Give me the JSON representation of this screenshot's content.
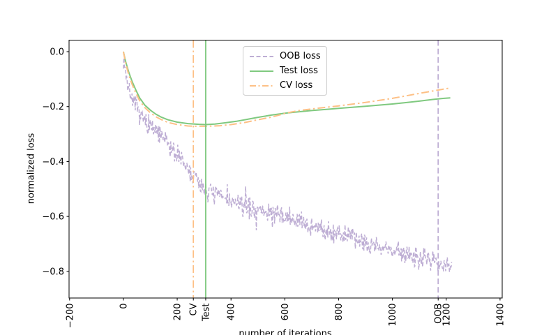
{
  "chart_data": {
    "type": "line",
    "title": "",
    "xlabel": "number of iterations",
    "ylabel": "normalized loss",
    "xlim": [
      -202,
      1408
    ],
    "ylim": [
      -0.897,
      0.042
    ],
    "grid": false,
    "legend_position": "upper center",
    "xticks": [
      {
        "value": -200,
        "label": "−200"
      },
      {
        "value": 0,
        "label": "0"
      },
      {
        "value": 200,
        "label": "200"
      },
      {
        "value": 260,
        "label": "CV"
      },
      {
        "value": 306,
        "label": "Test"
      },
      {
        "value": 400,
        "label": "400"
      },
      {
        "value": 600,
        "label": "600"
      },
      {
        "value": 800,
        "label": "800"
      },
      {
        "value": 1000,
        "label": "1000"
      },
      {
        "value": 1170,
        "label": "OOB"
      },
      {
        "value": 1200,
        "label": "1200"
      },
      {
        "value": 1400,
        "label": "1400"
      }
    ],
    "yticks": [
      {
        "value": 0.0,
        "label": "0.0"
      },
      {
        "value": -0.2,
        "label": "−0.2"
      },
      {
        "value": -0.4,
        "label": "−0.4"
      },
      {
        "value": -0.6,
        "label": "−0.6"
      },
      {
        "value": -0.8,
        "label": "−0.8"
      }
    ],
    "series": [
      {
        "name": "OOB loss",
        "color": "#beaed4",
        "style": "dashed",
        "noisy": true,
        "noise_amp": 0.045,
        "sample_step": 2,
        "seed": 7,
        "points": [
          [
            0,
            -0.02
          ],
          [
            5,
            -0.05
          ],
          [
            12,
            -0.1
          ],
          [
            20,
            -0.135
          ],
          [
            30,
            -0.165
          ],
          [
            45,
            -0.2
          ],
          [
            60,
            -0.225
          ],
          [
            80,
            -0.253
          ],
          [
            100,
            -0.272
          ],
          [
            125,
            -0.295
          ],
          [
            150,
            -0.318
          ],
          [
            175,
            -0.347
          ],
          [
            200,
            -0.375
          ],
          [
            230,
            -0.415
          ],
          [
            260,
            -0.455
          ],
          [
            285,
            -0.48
          ],
          [
            306,
            -0.5
          ],
          [
            330,
            -0.512
          ],
          [
            360,
            -0.525
          ],
          [
            400,
            -0.547
          ],
          [
            450,
            -0.562
          ],
          [
            500,
            -0.576
          ],
          [
            550,
            -0.588
          ],
          [
            600,
            -0.6
          ],
          [
            650,
            -0.617
          ],
          [
            700,
            -0.634
          ],
          [
            750,
            -0.648
          ],
          [
            800,
            -0.662
          ],
          [
            850,
            -0.678
          ],
          [
            900,
            -0.695
          ],
          [
            950,
            -0.71
          ],
          [
            1000,
            -0.723
          ],
          [
            1050,
            -0.736
          ],
          [
            1100,
            -0.748
          ],
          [
            1140,
            -0.757
          ],
          [
            1170,
            -0.766
          ],
          [
            1200,
            -0.775
          ],
          [
            1220,
            -0.78
          ]
        ]
      },
      {
        "name": "Test loss",
        "color": "#7fc97f",
        "style": "solid",
        "noisy": false,
        "points": [
          [
            0,
            0
          ],
          [
            8,
            -0.035
          ],
          [
            20,
            -0.075
          ],
          [
            32,
            -0.108
          ],
          [
            45,
            -0.137
          ],
          [
            60,
            -0.168
          ],
          [
            80,
            -0.195
          ],
          [
            100,
            -0.213
          ],
          [
            120,
            -0.227
          ],
          [
            140,
            -0.238
          ],
          [
            165,
            -0.248
          ],
          [
            200,
            -0.2565
          ],
          [
            240,
            -0.262
          ],
          [
            280,
            -0.2645
          ],
          [
            306,
            -0.2655
          ],
          [
            340,
            -0.2635
          ],
          [
            380,
            -0.259
          ],
          [
            420,
            -0.2535
          ],
          [
            460,
            -0.2465
          ],
          [
            500,
            -0.239
          ],
          [
            550,
            -0.231
          ],
          [
            605,
            -0.2235
          ],
          [
            650,
            -0.219
          ],
          [
            700,
            -0.2145
          ],
          [
            750,
            -0.2105
          ],
          [
            800,
            -0.2065
          ],
          [
            850,
            -0.2025
          ],
          [
            900,
            -0.199
          ],
          [
            950,
            -0.1945
          ],
          [
            1000,
            -0.1905
          ],
          [
            1050,
            -0.1855
          ],
          [
            1100,
            -0.18
          ],
          [
            1150,
            -0.174
          ],
          [
            1185,
            -0.1705
          ],
          [
            1215,
            -0.1685
          ]
        ]
      },
      {
        "name": "CV loss",
        "color": "#fdc086",
        "style": "dashdot",
        "noisy": false,
        "points": [
          [
            0,
            0
          ],
          [
            8,
            -0.04
          ],
          [
            20,
            -0.085
          ],
          [
            32,
            -0.118
          ],
          [
            45,
            -0.148
          ],
          [
            60,
            -0.178
          ],
          [
            80,
            -0.204
          ],
          [
            100,
            -0.2225
          ],
          [
            120,
            -0.2365
          ],
          [
            140,
            -0.247
          ],
          [
            165,
            -0.2575
          ],
          [
            200,
            -0.2655
          ],
          [
            240,
            -0.2705
          ],
          [
            270,
            -0.2715
          ],
          [
            310,
            -0.2715
          ],
          [
            360,
            -0.2695
          ],
          [
            400,
            -0.2655
          ],
          [
            450,
            -0.258
          ],
          [
            500,
            -0.248
          ],
          [
            550,
            -0.2385
          ],
          [
            605,
            -0.2235
          ],
          [
            650,
            -0.215
          ],
          [
            700,
            -0.2085
          ],
          [
            750,
            -0.203
          ],
          [
            800,
            -0.1975
          ],
          [
            850,
            -0.191
          ],
          [
            900,
            -0.185
          ],
          [
            950,
            -0.1775
          ],
          [
            1000,
            -0.17
          ],
          [
            1050,
            -0.161
          ],
          [
            1100,
            -0.152
          ],
          [
            1160,
            -0.1415
          ],
          [
            1210,
            -0.133
          ]
        ]
      }
    ],
    "vlines": [
      {
        "x": 260,
        "label": "CV",
        "color": "#fdc086",
        "style": "dashdot"
      },
      {
        "x": 306,
        "label": "Test",
        "color": "#7fc97f",
        "style": "solid"
      },
      {
        "x": 1170,
        "label": "OOB",
        "color": "#beaed4",
        "style": "dashed"
      }
    ]
  },
  "colors": {
    "oob": "#beaed4",
    "test": "#7fc97f",
    "cv": "#fdc086",
    "spine": "#000000",
    "legend_border": "#cccccc"
  }
}
